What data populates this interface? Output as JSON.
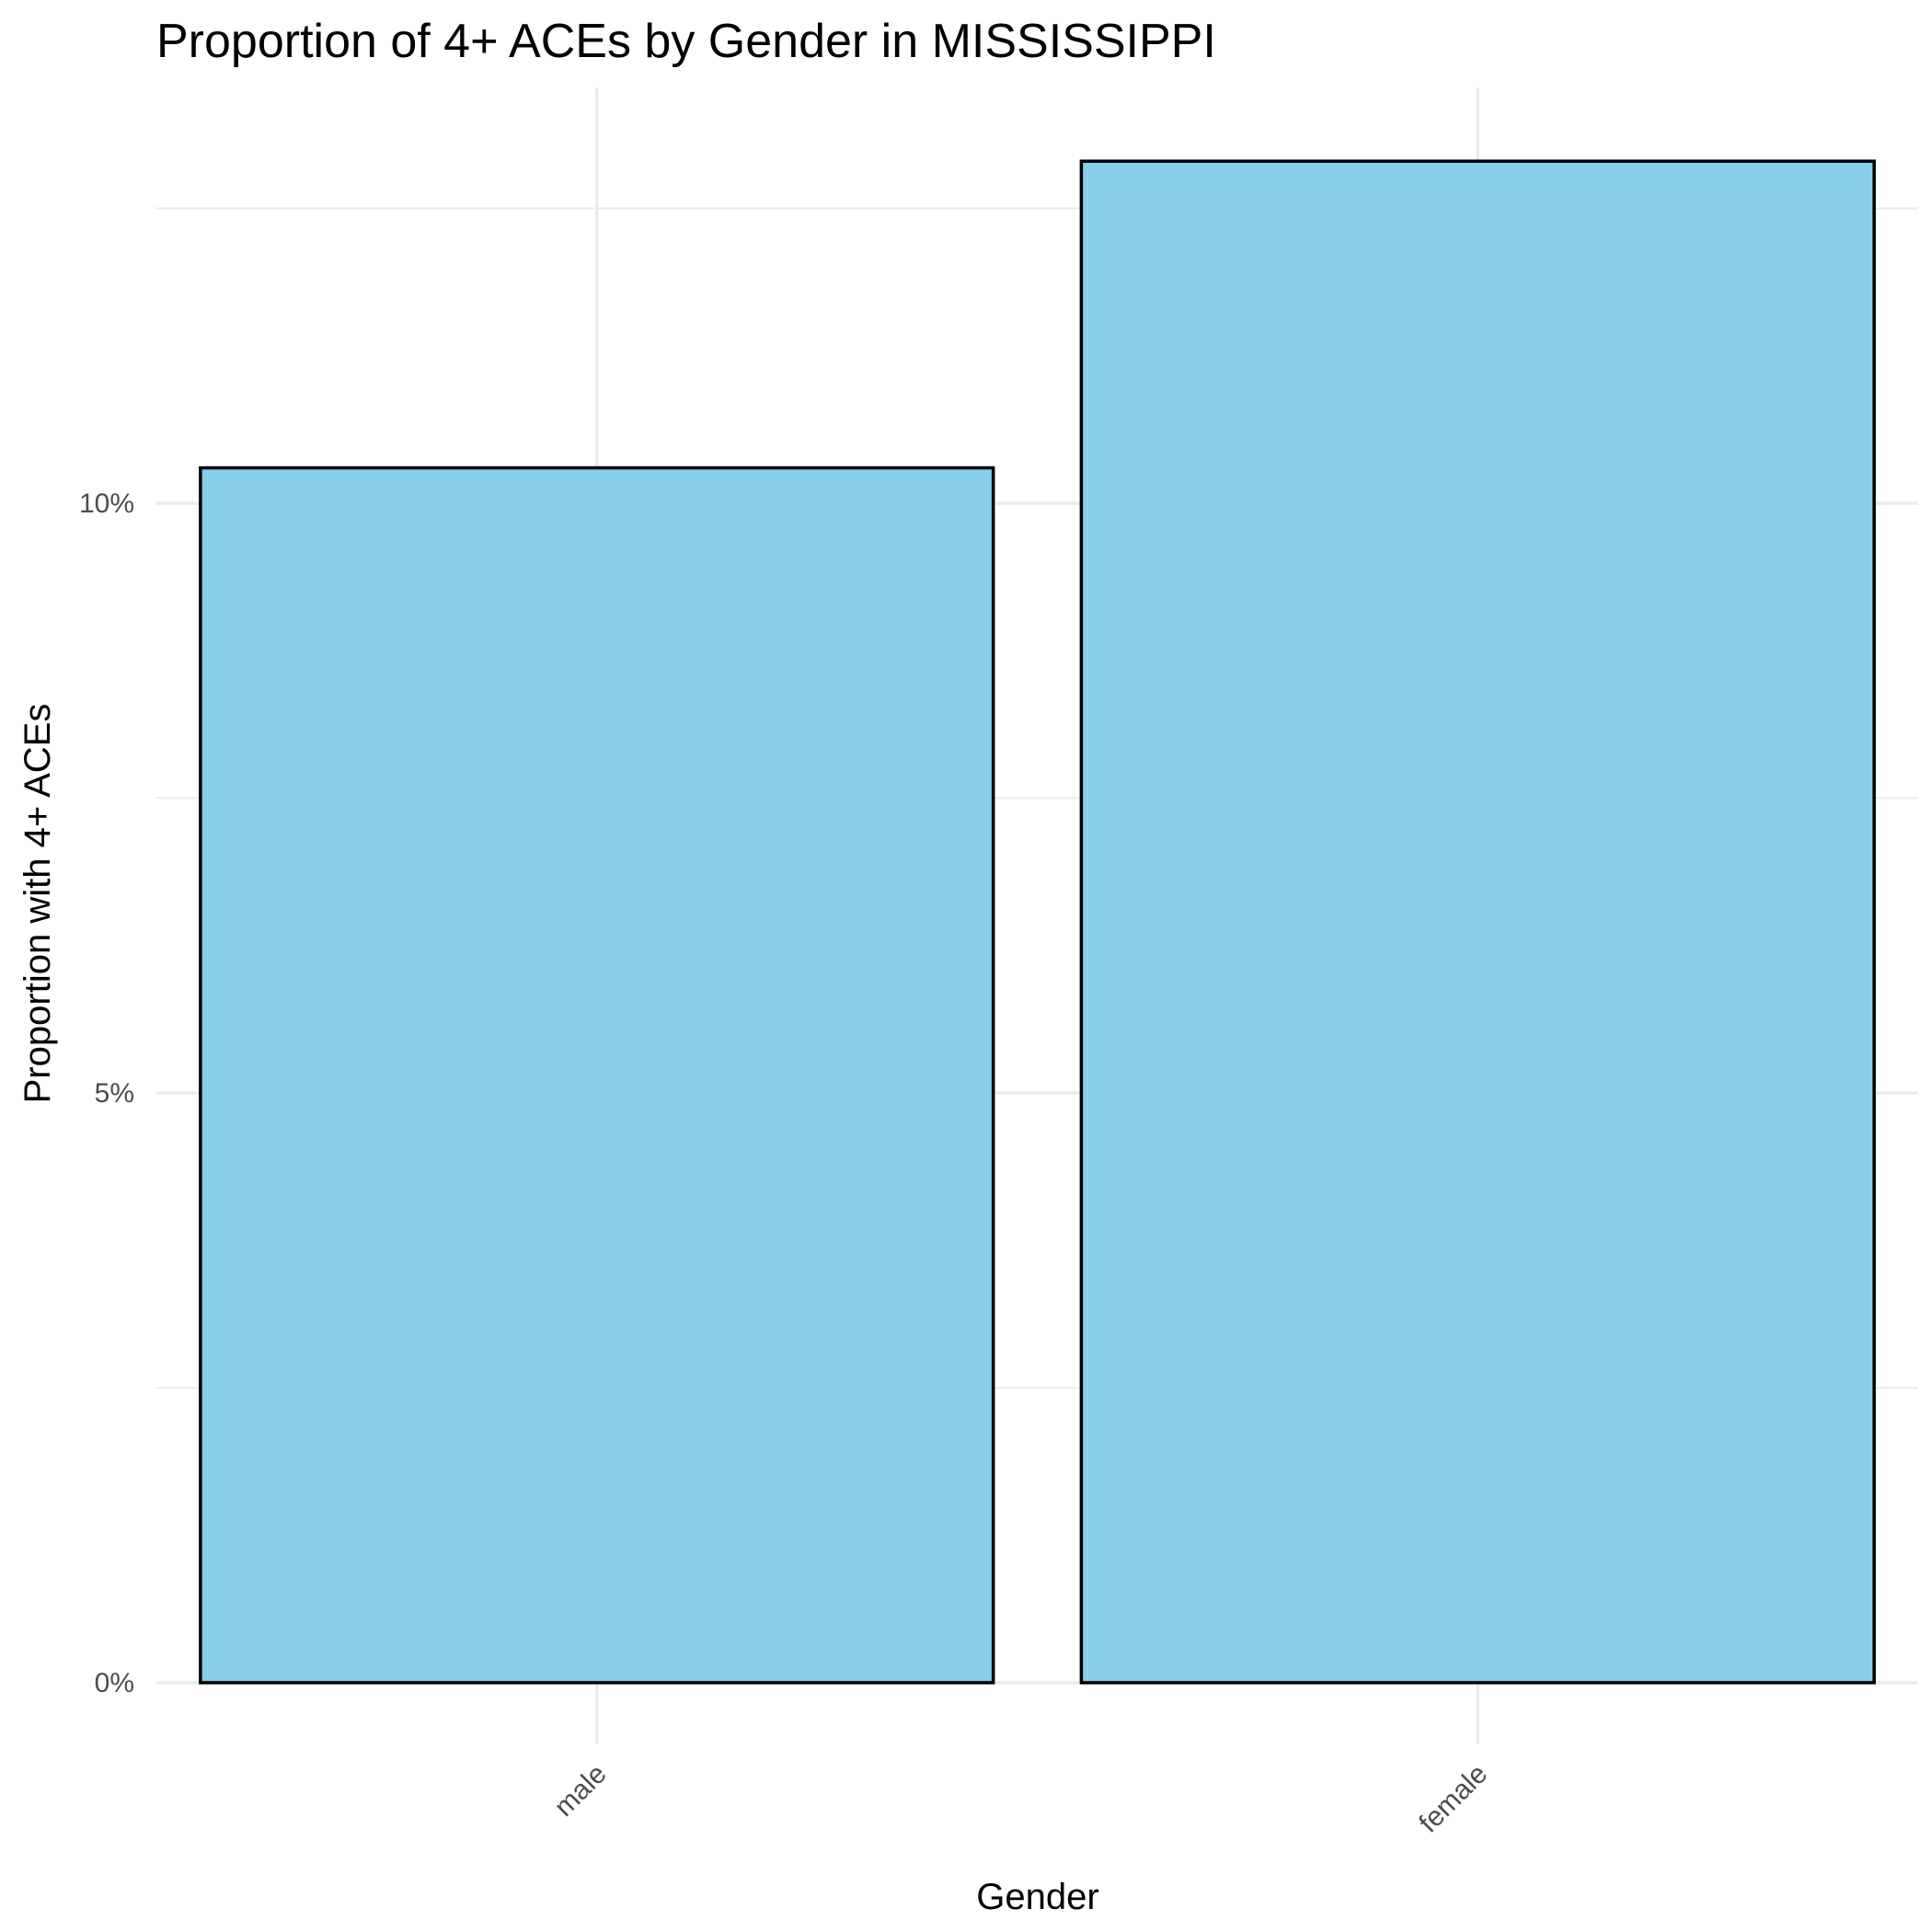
{
  "chart_data": {
    "type": "bar",
    "title": "Proportion of 4+ ACEs by Gender in MISSISSIPPI",
    "xlabel": "Gender",
    "ylabel": "Proportion with 4+ ACEs",
    "categories": [
      "male",
      "female"
    ],
    "values": [
      10.3,
      12.9
    ],
    "value_unit": "percent",
    "ylim": [
      0,
      13.5
    ],
    "y_ticks": [
      0,
      5,
      10
    ],
    "y_tick_labels": [
      "0%",
      "5%",
      "10%"
    ],
    "y_minor_ticks": [
      2.5,
      7.5,
      12.5
    ],
    "grid": true,
    "legend": "none",
    "bar_fill": "#87CEEB",
    "bar_outline": "#000000",
    "grid_color": "#ebebeb"
  }
}
